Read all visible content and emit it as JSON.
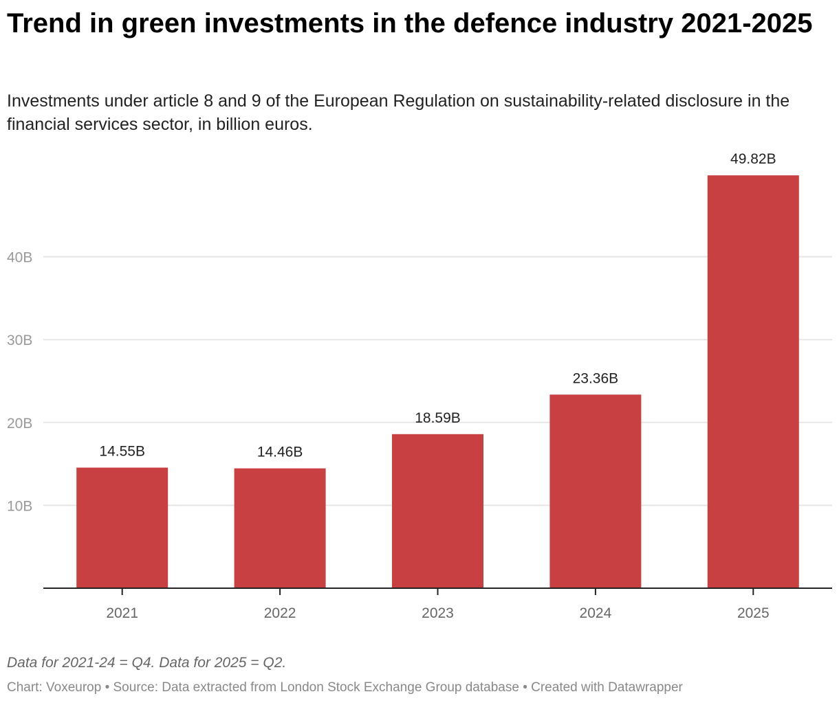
{
  "title": "Trend in green investments in the defence industry 2021-2025",
  "subtitle": "Investments under article 8 and 9 of the European Regulation on sustainability-related disclosure in the financial services sector, in billion euros.",
  "note": "Data for 2021-24 = Q4. Data for 2025 = Q2.",
  "credit": "Chart: Voxeurop • Source: Data extracted from London Stock Exchange Group database • Created with Datawrapper",
  "colors": {
    "bar": "#c84042",
    "grid": "#e5e5e5",
    "axis": "#222222",
    "tick_label": "#999999"
  },
  "chart_data": {
    "type": "bar",
    "categories": [
      "2021",
      "2022",
      "2023",
      "2024",
      "2025"
    ],
    "values": [
      14.55,
      14.46,
      18.59,
      23.36,
      49.82
    ],
    "data_labels": [
      "14.55B",
      "14.46B",
      "18.59B",
      "23.36B",
      "49.82B"
    ],
    "yticks": [
      10,
      20,
      30,
      40
    ],
    "ytick_labels": [
      "10B",
      "20B",
      "30B",
      "40B"
    ],
    "ylim": [
      0,
      50
    ],
    "grid": true,
    "xlabel": "",
    "ylabel": ""
  }
}
